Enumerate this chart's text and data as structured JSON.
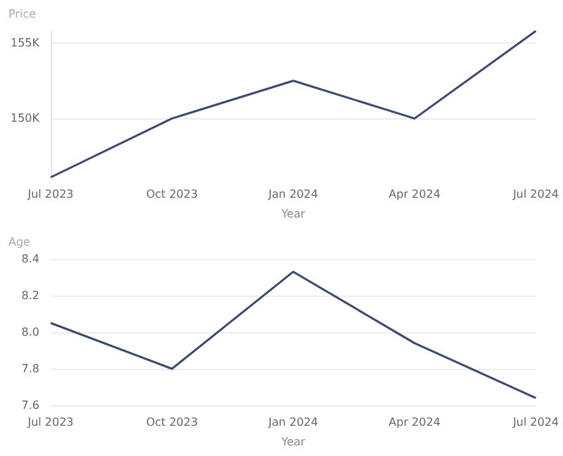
{
  "chart_data": [
    {
      "type": "line",
      "ylabel": "Price",
      "xlabel": "Year",
      "categories": [
        "Jul 2023",
        "Oct 2023",
        "Jan 2024",
        "Apr 2024",
        "Jul 2024"
      ],
      "series": [
        {
          "color": "#3c4a6e",
          "values": [
            146100,
            150000,
            152500,
            150000,
            155800
          ]
        }
      ],
      "ylim": [
        146100,
        155800
      ],
      "yticks": [
        {
          "value": 150000,
          "label": "150K"
        },
        {
          "value": 155000,
          "label": "155K"
        }
      ],
      "grid": "y",
      "marker": "none"
    },
    {
      "type": "line",
      "ylabel": "Age",
      "xlabel": "Year",
      "categories": [
        "Jul 2023",
        "Oct 2023",
        "Jan 2024",
        "Apr 2024",
        "Jul 2024"
      ],
      "series": [
        {
          "color": "#3c4a6e",
          "values": [
            8.05,
            7.8,
            8.33,
            7.94,
            7.64
          ]
        }
      ],
      "ylim": [
        7.6,
        8.4
      ],
      "yticks": [
        7.6,
        7.8,
        {
          "value": 8.0,
          "label": "8.0"
        },
        8.2,
        8.4
      ],
      "grid": "y",
      "marker": "none"
    }
  ]
}
